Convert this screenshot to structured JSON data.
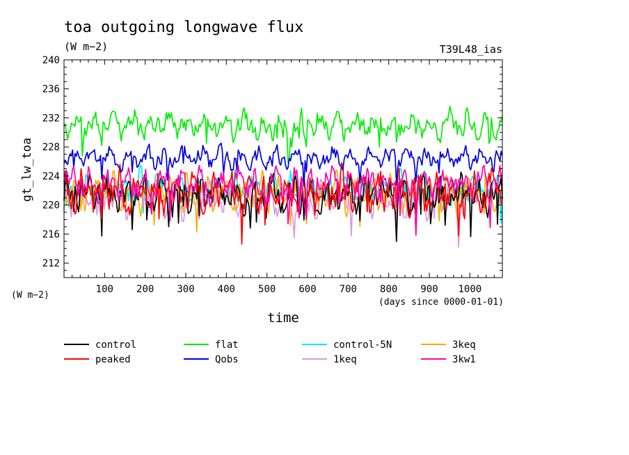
{
  "chart_data": {
    "type": "line",
    "title": "toa outgoing longwave flux",
    "units": "(W m−2)",
    "experiment": "T39L48_ias",
    "ylabel": "gt_lw_toa",
    "xlabel": "time",
    "y_units_label": "(W m−2)",
    "x_units_label": "(days since 0000-01-01)",
    "xlim": [
      0,
      1080
    ],
    "ylim": [
      210,
      240
    ],
    "xticks": [
      100,
      200,
      300,
      400,
      500,
      600,
      700,
      800,
      900,
      1000
    ],
    "yticks": [
      212,
      216,
      220,
      224,
      228,
      232,
      236,
      240
    ],
    "grid": false,
    "legend_position": "bottom",
    "series": [
      {
        "name": "control",
        "color": "#000000",
        "mean": 221.5,
        "amp": 2.2
      },
      {
        "name": "peaked",
        "color": "#ff0000",
        "mean": 221.8,
        "amp": 2.4
      },
      {
        "name": "flat",
        "color": "#00ee00",
        "mean": 231.0,
        "amp": 1.6
      },
      {
        "name": "Qobs",
        "color": "#0000dd",
        "mean": 226.5,
        "amp": 1.3
      },
      {
        "name": "control-5N",
        "color": "#00eeee",
        "mean": 222.2,
        "amp": 1.8
      },
      {
        "name": "1keq",
        "color": "#dd99dd",
        "mean": 221.0,
        "amp": 2.2
      },
      {
        "name": "3keq",
        "color": "#ffaa00",
        "mean": 221.6,
        "amp": 2.0
      },
      {
        "name": "3kw1",
        "color": "#ff00aa",
        "mean": 222.8,
        "amp": 2.0
      }
    ]
  }
}
